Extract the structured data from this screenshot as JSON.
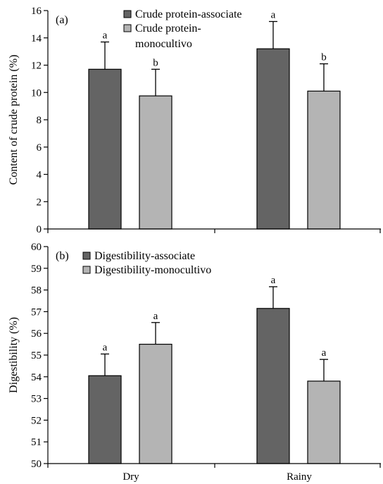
{
  "chart_data": [
    {
      "type": "bar",
      "panel_label": "(a)",
      "title": "",
      "xlabel": "",
      "ylabel": "Content of crude protein (%)",
      "ylim": [
        0,
        16
      ],
      "yticks": [
        0,
        2,
        4,
        6,
        8,
        10,
        12,
        14,
        16
      ],
      "categories": [
        "Dry",
        "Rainy"
      ],
      "legend_position": "top-center",
      "grid": false,
      "series": [
        {
          "name": "Crude protein-associate",
          "color": "#646464",
          "values": [
            11.7,
            13.2
          ],
          "errors": [
            2.0,
            2.0
          ],
          "labels": [
            "a",
            "a"
          ]
        },
        {
          "name": "Crude protein-monocultivo",
          "color": "#b4b4b4",
          "values": [
            9.75,
            10.1
          ],
          "errors": [
            1.95,
            2.0
          ],
          "labels": [
            "b",
            "b"
          ]
        }
      ]
    },
    {
      "type": "bar",
      "panel_label": "(b)",
      "title": "",
      "xlabel": "",
      "ylabel": "Digestibility (%)",
      "ylim": [
        50,
        60
      ],
      "yticks": [
        50,
        51,
        52,
        53,
        54,
        55,
        56,
        57,
        58,
        59,
        60
      ],
      "categories": [
        "Dry",
        "Rainy"
      ],
      "legend_position": "top-left",
      "grid": false,
      "series": [
        {
          "name": "Digestibility-associate",
          "color": "#646464",
          "values": [
            54.05,
            57.15
          ],
          "errors": [
            1.0,
            1.0
          ],
          "labels": [
            "a",
            "a"
          ]
        },
        {
          "name": "Digestibility-monocultivo",
          "color": "#b4b4b4",
          "values": [
            55.5,
            53.8
          ],
          "errors": [
            1.0,
            1.0
          ],
          "labels": [
            "a",
            "a"
          ]
        }
      ]
    }
  ]
}
